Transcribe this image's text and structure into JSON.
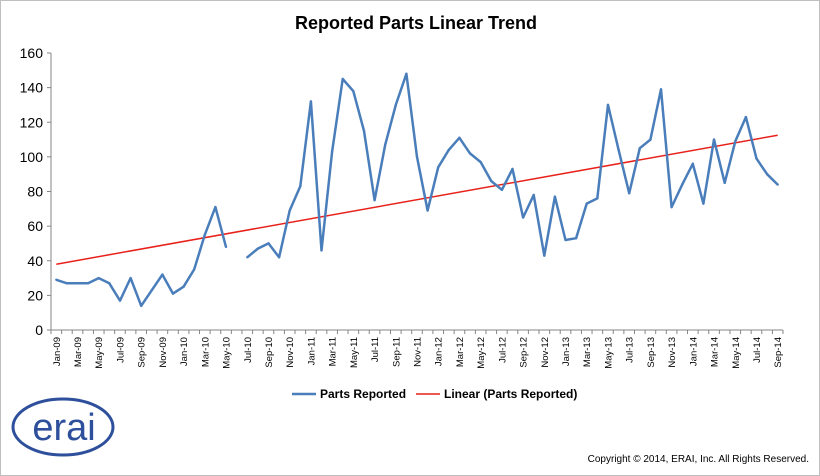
{
  "chart_data": {
    "type": "line",
    "title": "Reported Parts Linear Trend",
    "xlabel": "",
    "ylabel": "",
    "ylim": [
      0,
      160
    ],
    "yticks": [
      0,
      20,
      40,
      60,
      80,
      100,
      120,
      140,
      160
    ],
    "grid": false,
    "legend_position": "bottom",
    "x": [
      "Jan-09",
      "Feb-09",
      "Mar-09",
      "Apr-09",
      "May-09",
      "Jun-09",
      "Jul-09",
      "Aug-09",
      "Sep-09",
      "Oct-09",
      "Nov-09",
      "Dec-09",
      "Jan-10",
      "Feb-10",
      "Mar-10",
      "Apr-10",
      "May-10",
      "Jun-10",
      "Jul-10",
      "Aug-10",
      "Sep-10",
      "Oct-10",
      "Nov-10",
      "Dec-10",
      "Jan-11",
      "Feb-11",
      "Mar-11",
      "Apr-11",
      "May-11",
      "Jun-11",
      "Jul-11",
      "Aug-11",
      "Sep-11",
      "Oct-11",
      "Nov-11",
      "Dec-11",
      "Jan-12",
      "Feb-12",
      "Mar-12",
      "Apr-12",
      "May-12",
      "Jun-12",
      "Jul-12",
      "Aug-12",
      "Sep-12",
      "Oct-12",
      "Nov-12",
      "Dec-12",
      "Jan-13",
      "Feb-13",
      "Mar-13",
      "Apr-13",
      "May-13",
      "Jun-13",
      "Jul-13",
      "Aug-13",
      "Sep-13",
      "Oct-13",
      "Nov-13",
      "Dec-13",
      "Jan-14",
      "Feb-14",
      "Mar-14",
      "Apr-14",
      "May-14",
      "Jun-14",
      "Jul-14",
      "Aug-14",
      "Sep-14"
    ],
    "xtick_labels": [
      "Jan-09",
      "Mar-09",
      "May-09",
      "Jul-09",
      "Sep-09",
      "Nov-09",
      "Jan-10",
      "Mar-10",
      "May-10",
      "Jul-10",
      "Sep-10",
      "Nov-10",
      "Jan-11",
      "Mar-11",
      "May-11",
      "Jul-11",
      "Sep-11",
      "Nov-11",
      "Jan-12",
      "Mar-12",
      "May-12",
      "Jul-12",
      "Sep-12",
      "Nov-12",
      "Jan-13",
      "Mar-13",
      "May-13",
      "Jul-13",
      "Sep-13",
      "Nov-13",
      "Jan-14",
      "Mar-14",
      "May-14",
      "Jul-14",
      "Sep-14"
    ],
    "series": [
      {
        "name": "Parts Reported",
        "color": "#4a7ebb",
        "values": [
          29,
          27,
          27,
          27,
          30,
          27,
          17,
          30,
          14,
          23,
          32,
          21,
          25,
          35,
          55,
          71,
          48,
          null,
          42,
          47,
          50,
          42,
          69,
          83,
          132,
          46,
          103,
          145,
          138,
          115,
          75,
          107,
          130,
          148,
          100,
          69,
          94,
          104,
          111,
          102,
          97,
          86,
          81,
          93,
          65,
          78,
          43,
          77,
          52,
          53,
          73,
          76,
          130,
          104,
          79,
          105,
          110,
          139,
          71,
          84,
          96,
          73,
          110,
          85,
          109,
          123,
          99,
          90,
          84
        ]
      },
      {
        "name": "Linear (Parts Reported)",
        "color": "#e8211a",
        "type": "trendline",
        "start": 38,
        "end": 112.5
      }
    ]
  },
  "logo": {
    "text": "erai",
    "color": "#2e4f9b"
  },
  "copyright": "Copyright © 2014, ERAI, Inc.  All Rights Reserved."
}
